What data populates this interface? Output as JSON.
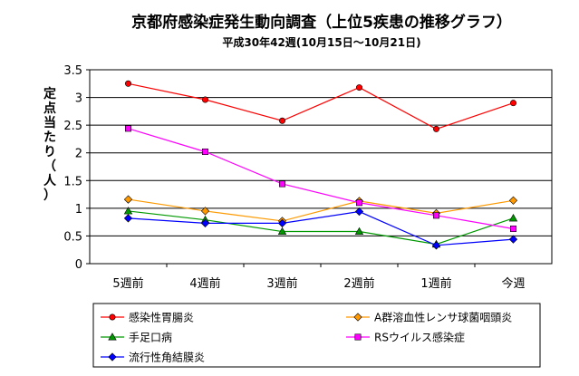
{
  "chart_data": {
    "type": "line",
    "title": "京都府感染症発生動向調査（上位5疾患の推移グラフ）",
    "subtitle": "平成30年42週(10月15日～10月21日)",
    "ylabel": "定点当たり（人）",
    "xlabel": "",
    "categories": [
      "5週前",
      "4週前",
      "3週前",
      "2週前",
      "1週前",
      "今週"
    ],
    "ylim": [
      0,
      3.5
    ],
    "yticks": [
      "0",
      "0.5",
      "1",
      "1.5",
      "2",
      "2.5",
      "3",
      "3.5"
    ],
    "grid": true,
    "legend_position": "bottom",
    "series": [
      {
        "name": "感染性胃腸炎",
        "color": "#ff0000",
        "marker": "circle",
        "values": [
          3.25,
          2.96,
          2.58,
          3.18,
          2.43,
          2.9
        ]
      },
      {
        "name": "A群溶血性レンサ球菌咽頭炎",
        "color": "#ff9900",
        "marker": "diamond",
        "values": [
          1.16,
          0.95,
          0.77,
          1.13,
          0.91,
          1.14
        ]
      },
      {
        "name": "手足口病",
        "color": "#009900",
        "marker": "triangle",
        "values": [
          0.95,
          0.79,
          0.58,
          0.58,
          0.35,
          0.82
        ]
      },
      {
        "name": "RSウイルス感染症",
        "color": "#ff00ff",
        "marker": "square",
        "values": [
          2.44,
          2.02,
          1.44,
          1.1,
          0.87,
          0.63
        ]
      },
      {
        "name": "流行性角結膜炎",
        "color": "#0000ff",
        "marker": "diamond",
        "values": [
          0.82,
          0.73,
          0.73,
          0.94,
          0.33,
          0.44
        ]
      }
    ]
  }
}
